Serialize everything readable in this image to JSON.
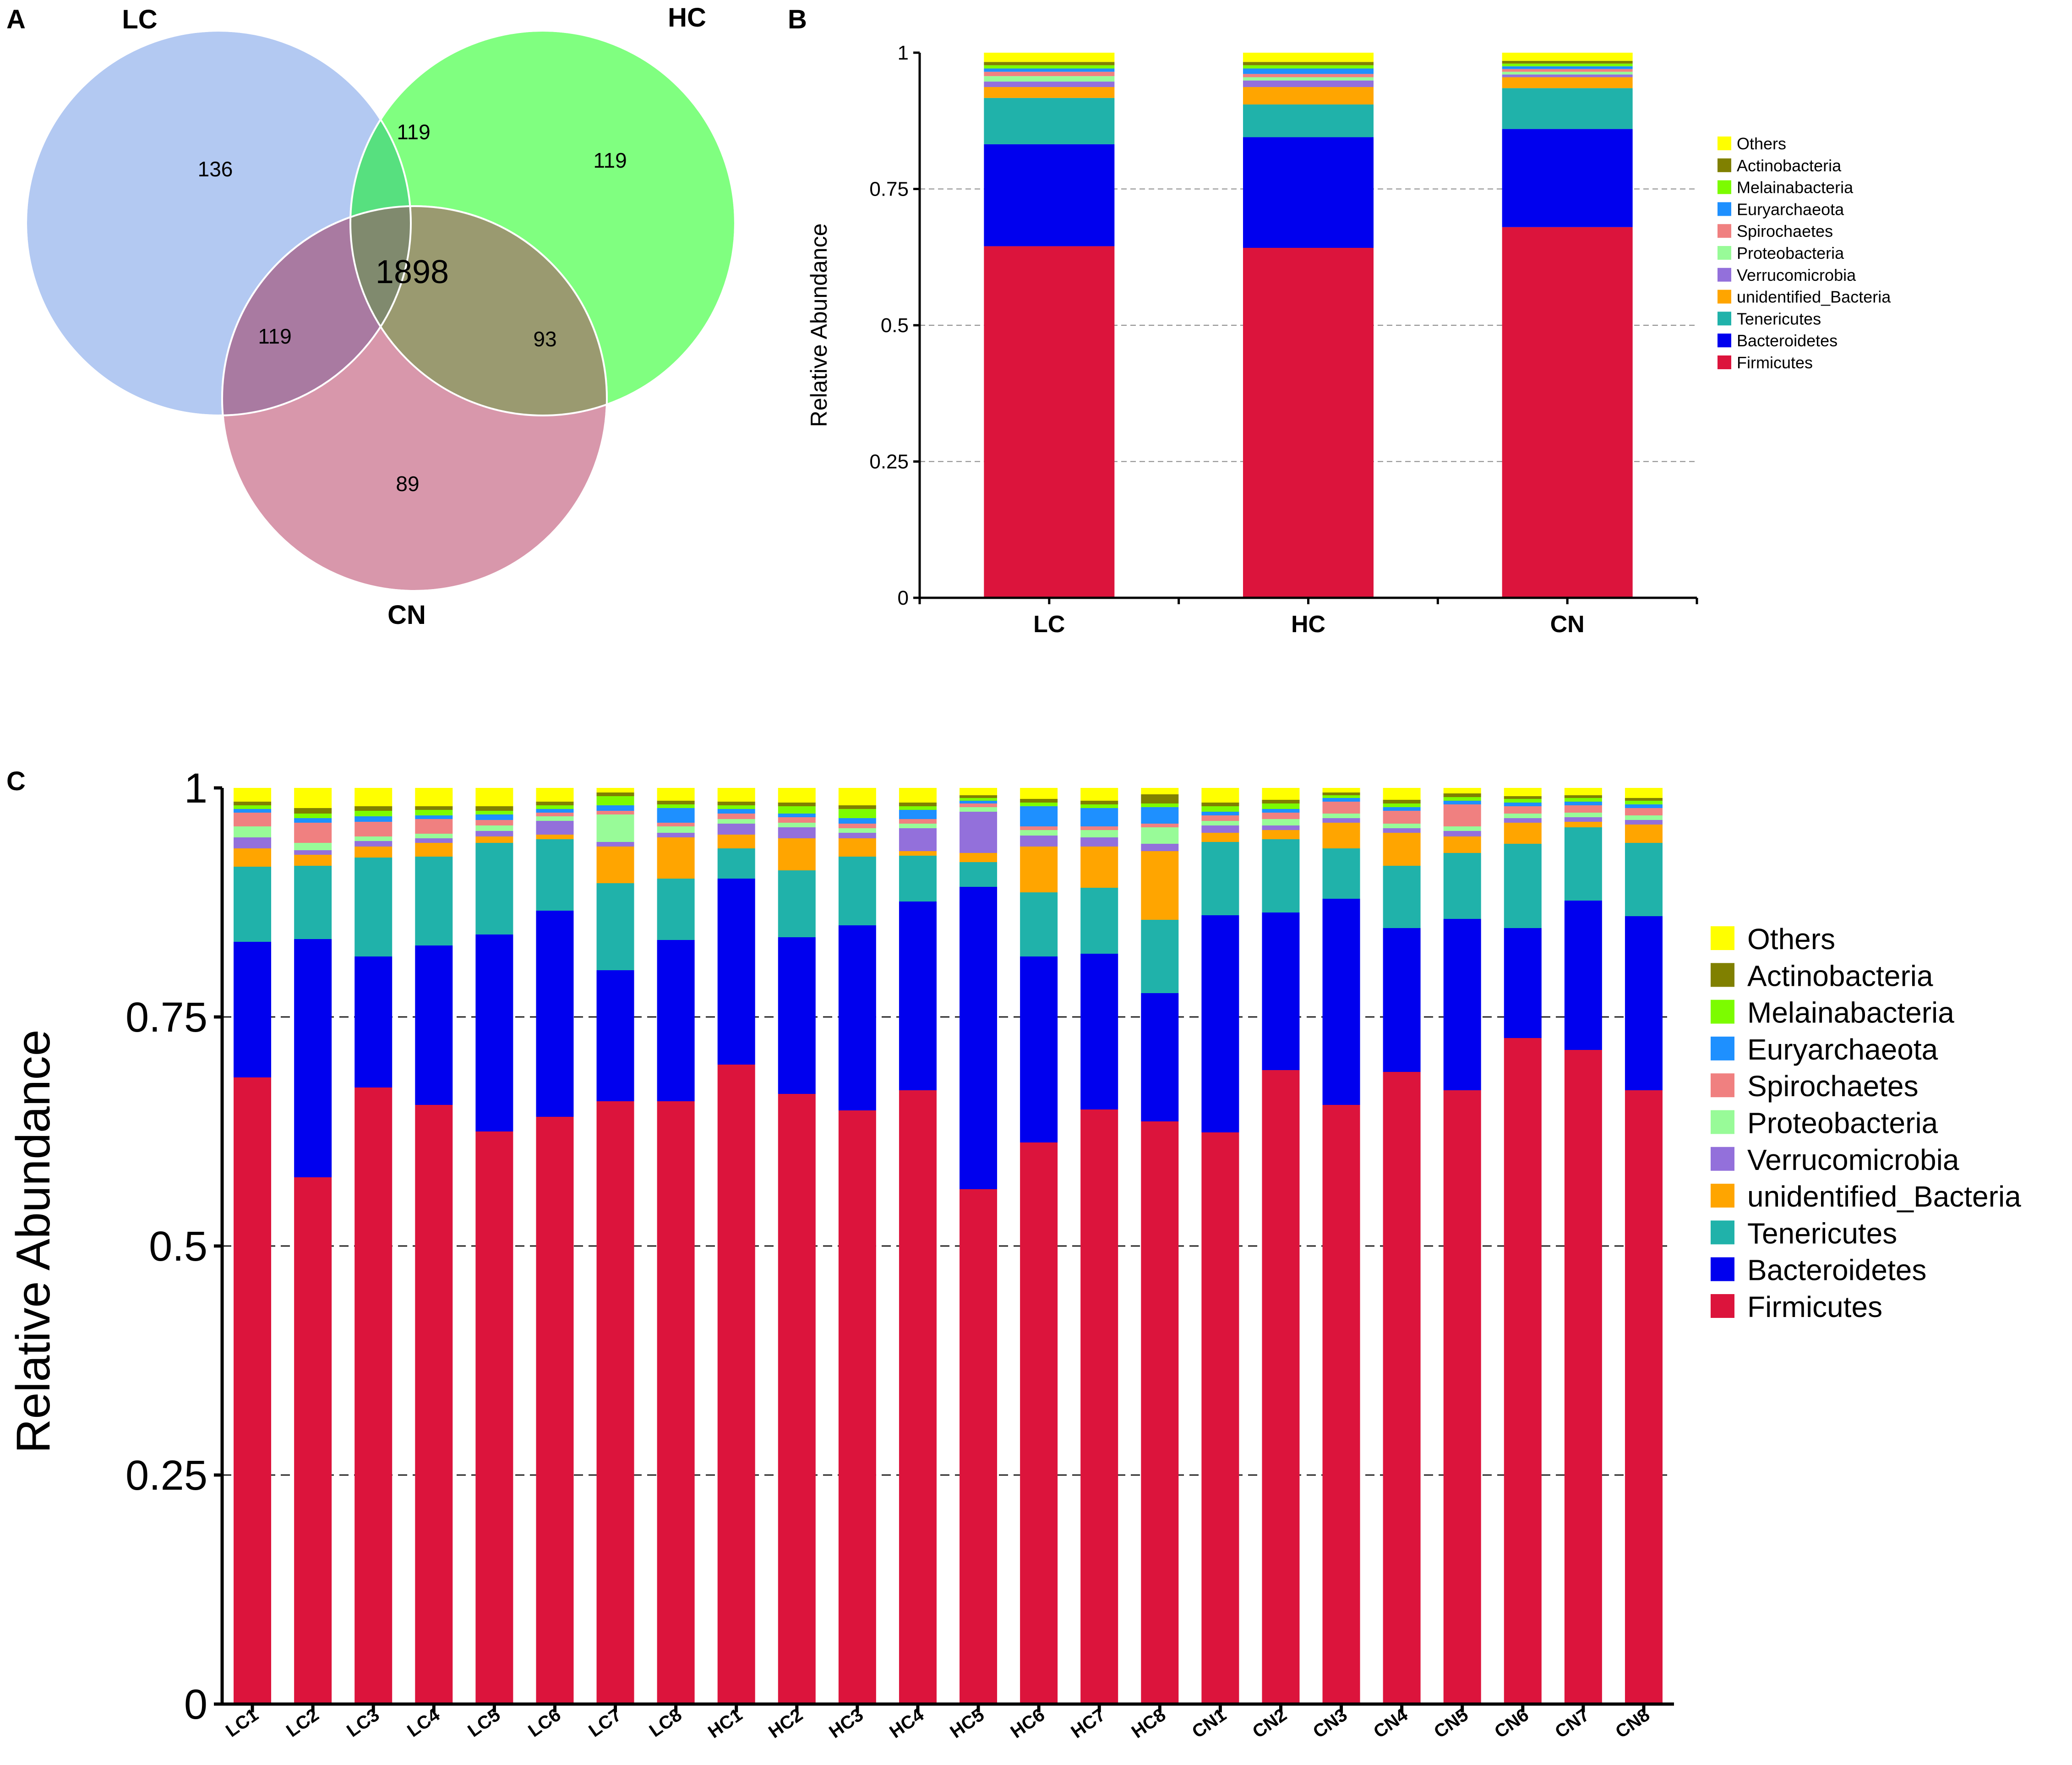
{
  "panel_labels": {
    "a": "A",
    "b": "B",
    "c": "C"
  },
  "legend_order": [
    "Others",
    "Actinobacteria",
    "Melainabacteria",
    "Euryarchaeota",
    "Spirochaetes",
    "Proteobacteria",
    "Verrucomicrobia",
    "unidentified_Bacteria",
    "Tenericutes",
    "Bacteroidetes",
    "Firmicutes"
  ],
  "colors": {
    "Firmicutes": "#dc143c",
    "Bacteroidetes": "#0000ee",
    "Tenericutes": "#20b2aa",
    "unidentified_Bacteria": "#ffa500",
    "Verrucomicrobia": "#9370db",
    "Proteobacteria": "#98fb98",
    "Spirochaetes": "#f08080",
    "Euryarchaeota": "#1e90ff",
    "Melainabacteria": "#7cfc00",
    "Actinobacteria": "#808000",
    "Others": "#ffff00"
  },
  "venn": {
    "sets": [
      {
        "name": "LC",
        "color": "#b3c9f2"
      },
      {
        "name": "HC",
        "color": "#80ff80"
      },
      {
        "name": "CN",
        "color": "#d897ab"
      }
    ],
    "regions": {
      "LC_only": "136",
      "HC_only": "119",
      "CN_only": "89",
      "LC_HC": "119",
      "LC_CN": "119",
      "HC_CN": "93",
      "all": "1898"
    }
  },
  "chart_data": [
    {
      "type": "bar",
      "stacked": true,
      "panel": "B",
      "categories": [
        "LC",
        "HC",
        "CN"
      ],
      "ylabel": "Relative Abundance",
      "xlabel": "",
      "ylim": [
        0,
        1
      ],
      "yticks": [
        "0",
        "0.25",
        "0.5",
        "0.75",
        "1"
      ],
      "gridlines": [
        0.25,
        0.5,
        0.75
      ],
      "series": [
        {
          "name": "Firmicutes",
          "values": [
            0.645,
            0.642,
            0.68
          ]
        },
        {
          "name": "Bacteroidetes",
          "values": [
            0.187,
            0.203,
            0.18
          ]
        },
        {
          "name": "Tenericutes",
          "values": [
            0.085,
            0.06,
            0.075
          ]
        },
        {
          "name": "unidentified_Bacteria",
          "values": [
            0.02,
            0.032,
            0.02
          ]
        },
        {
          "name": "Verrucomicrobia",
          "values": [
            0.01,
            0.012,
            0.005
          ]
        },
        {
          "name": "Proteobacteria",
          "values": [
            0.01,
            0.006,
            0.005
          ]
        },
        {
          "name": "Spirochaetes",
          "values": [
            0.008,
            0.006,
            0.005
          ]
        },
        {
          "name": "Euryarchaeota",
          "values": [
            0.006,
            0.01,
            0.005
          ]
        },
        {
          "name": "Melainabacteria",
          "values": [
            0.006,
            0.006,
            0.005
          ]
        },
        {
          "name": "Actinobacteria",
          "values": [
            0.006,
            0.006,
            0.005
          ]
        },
        {
          "name": "Others",
          "values": [
            0.017,
            0.017,
            0.015
          ]
        }
      ]
    },
    {
      "type": "bar",
      "stacked": true,
      "panel": "C",
      "categories": [
        "LC1",
        "LC2",
        "LC3",
        "LC4",
        "LC5",
        "LC6",
        "LC7",
        "LC8",
        "HC1",
        "HC2",
        "HC3",
        "HC4",
        "HC5",
        "HC6",
        "HC7",
        "HC8",
        "CN1",
        "CN2",
        "CN3",
        "CN4",
        "CN5",
        "CN6",
        "CN7",
        "CN8"
      ],
      "ylabel": "Relative Abundance",
      "xlabel": "",
      "ylim": [
        0,
        1
      ],
      "yticks": [
        "0",
        "0.25",
        "0.5",
        "0.75",
        "1"
      ],
      "gridlines": [
        0.25,
        0.5,
        0.75
      ],
      "series": [
        {
          "name": "Firmicutes",
          "values": [
            0.684,
            0.575,
            0.673,
            0.654,
            0.625,
            0.641,
            0.658,
            0.658,
            0.698,
            0.666,
            0.648,
            0.67,
            0.562,
            0.613,
            0.649,
            0.636,
            0.624,
            0.692,
            0.654,
            0.69,
            0.67,
            0.727,
            0.714,
            0.67
          ]
        },
        {
          "name": "Bacteroidetes",
          "values": [
            0.148,
            0.26,
            0.143,
            0.174,
            0.215,
            0.225,
            0.143,
            0.176,
            0.203,
            0.171,
            0.202,
            0.206,
            0.33,
            0.203,
            0.17,
            0.14,
            0.237,
            0.172,
            0.225,
            0.157,
            0.187,
            0.12,
            0.163,
            0.19
          ]
        },
        {
          "name": "Tenericutes",
          "values": [
            0.082,
            0.08,
            0.108,
            0.097,
            0.1,
            0.078,
            0.095,
            0.067,
            0.033,
            0.073,
            0.075,
            0.05,
            0.027,
            0.07,
            0.072,
            0.08,
            0.08,
            0.08,
            0.055,
            0.068,
            0.072,
            0.092,
            0.08,
            0.08
          ]
        },
        {
          "name": "unidentified_Bacteria",
          "values": [
            0.02,
            0.012,
            0.012,
            0.015,
            0.007,
            0.005,
            0.04,
            0.045,
            0.015,
            0.035,
            0.02,
            0.005,
            0.01,
            0.05,
            0.045,
            0.075,
            0.01,
            0.01,
            0.028,
            0.036,
            0.018,
            0.023,
            0.006,
            0.02
          ]
        },
        {
          "name": "Verrucomicrobia",
          "values": [
            0.012,
            0.005,
            0.006,
            0.005,
            0.006,
            0.015,
            0.005,
            0.005,
            0.012,
            0.012,
            0.006,
            0.025,
            0.045,
            0.012,
            0.01,
            0.008,
            0.008,
            0.005,
            0.005,
            0.005,
            0.006,
            0.005,
            0.005,
            0.005
          ]
        },
        {
          "name": "Proteobacteria",
          "values": [
            0.012,
            0.008,
            0.005,
            0.005,
            0.006,
            0.005,
            0.03,
            0.007,
            0.005,
            0.005,
            0.005,
            0.005,
            0.005,
            0.006,
            0.008,
            0.018,
            0.005,
            0.007,
            0.005,
            0.005,
            0.005,
            0.005,
            0.005,
            0.005
          ]
        },
        {
          "name": "Spirochaetes",
          "values": [
            0.015,
            0.022,
            0.016,
            0.016,
            0.006,
            0.004,
            0.004,
            0.004,
            0.006,
            0.006,
            0.005,
            0.005,
            0.004,
            0.004,
            0.004,
            0.004,
            0.006,
            0.007,
            0.013,
            0.014,
            0.024,
            0.008,
            0.008,
            0.008
          ]
        },
        {
          "name": "Euryarchaeota",
          "values": [
            0.004,
            0.005,
            0.006,
            0.004,
            0.006,
            0.004,
            0.006,
            0.016,
            0.005,
            0.004,
            0.006,
            0.01,
            0.003,
            0.022,
            0.02,
            0.018,
            0.004,
            0.004,
            0.004,
            0.004,
            0.004,
            0.004,
            0.004,
            0.004
          ]
        },
        {
          "name": "Melainabacteria",
          "values": [
            0.004,
            0.005,
            0.006,
            0.006,
            0.004,
            0.004,
            0.01,
            0.004,
            0.004,
            0.008,
            0.01,
            0.004,
            0.003,
            0.004,
            0.004,
            0.004,
            0.006,
            0.006,
            0.003,
            0.004,
            0.004,
            0.004,
            0.004,
            0.004
          ]
        },
        {
          "name": "Actinobacteria",
          "values": [
            0.004,
            0.006,
            0.005,
            0.004,
            0.005,
            0.004,
            0.004,
            0.004,
            0.004,
            0.004,
            0.004,
            0.004,
            0.003,
            0.004,
            0.004,
            0.01,
            0.004,
            0.004,
            0.003,
            0.004,
            0.004,
            0.003,
            0.003,
            0.003
          ]
        },
        {
          "name": "Others",
          "values": [
            0.015,
            0.022,
            0.02,
            0.02,
            0.02,
            0.015,
            0.005,
            0.014,
            0.015,
            0.016,
            0.019,
            0.016,
            0.008,
            0.012,
            0.014,
            0.007,
            0.016,
            0.013,
            0.005,
            0.013,
            0.006,
            0.009,
            0.008,
            0.011
          ]
        }
      ]
    }
  ]
}
